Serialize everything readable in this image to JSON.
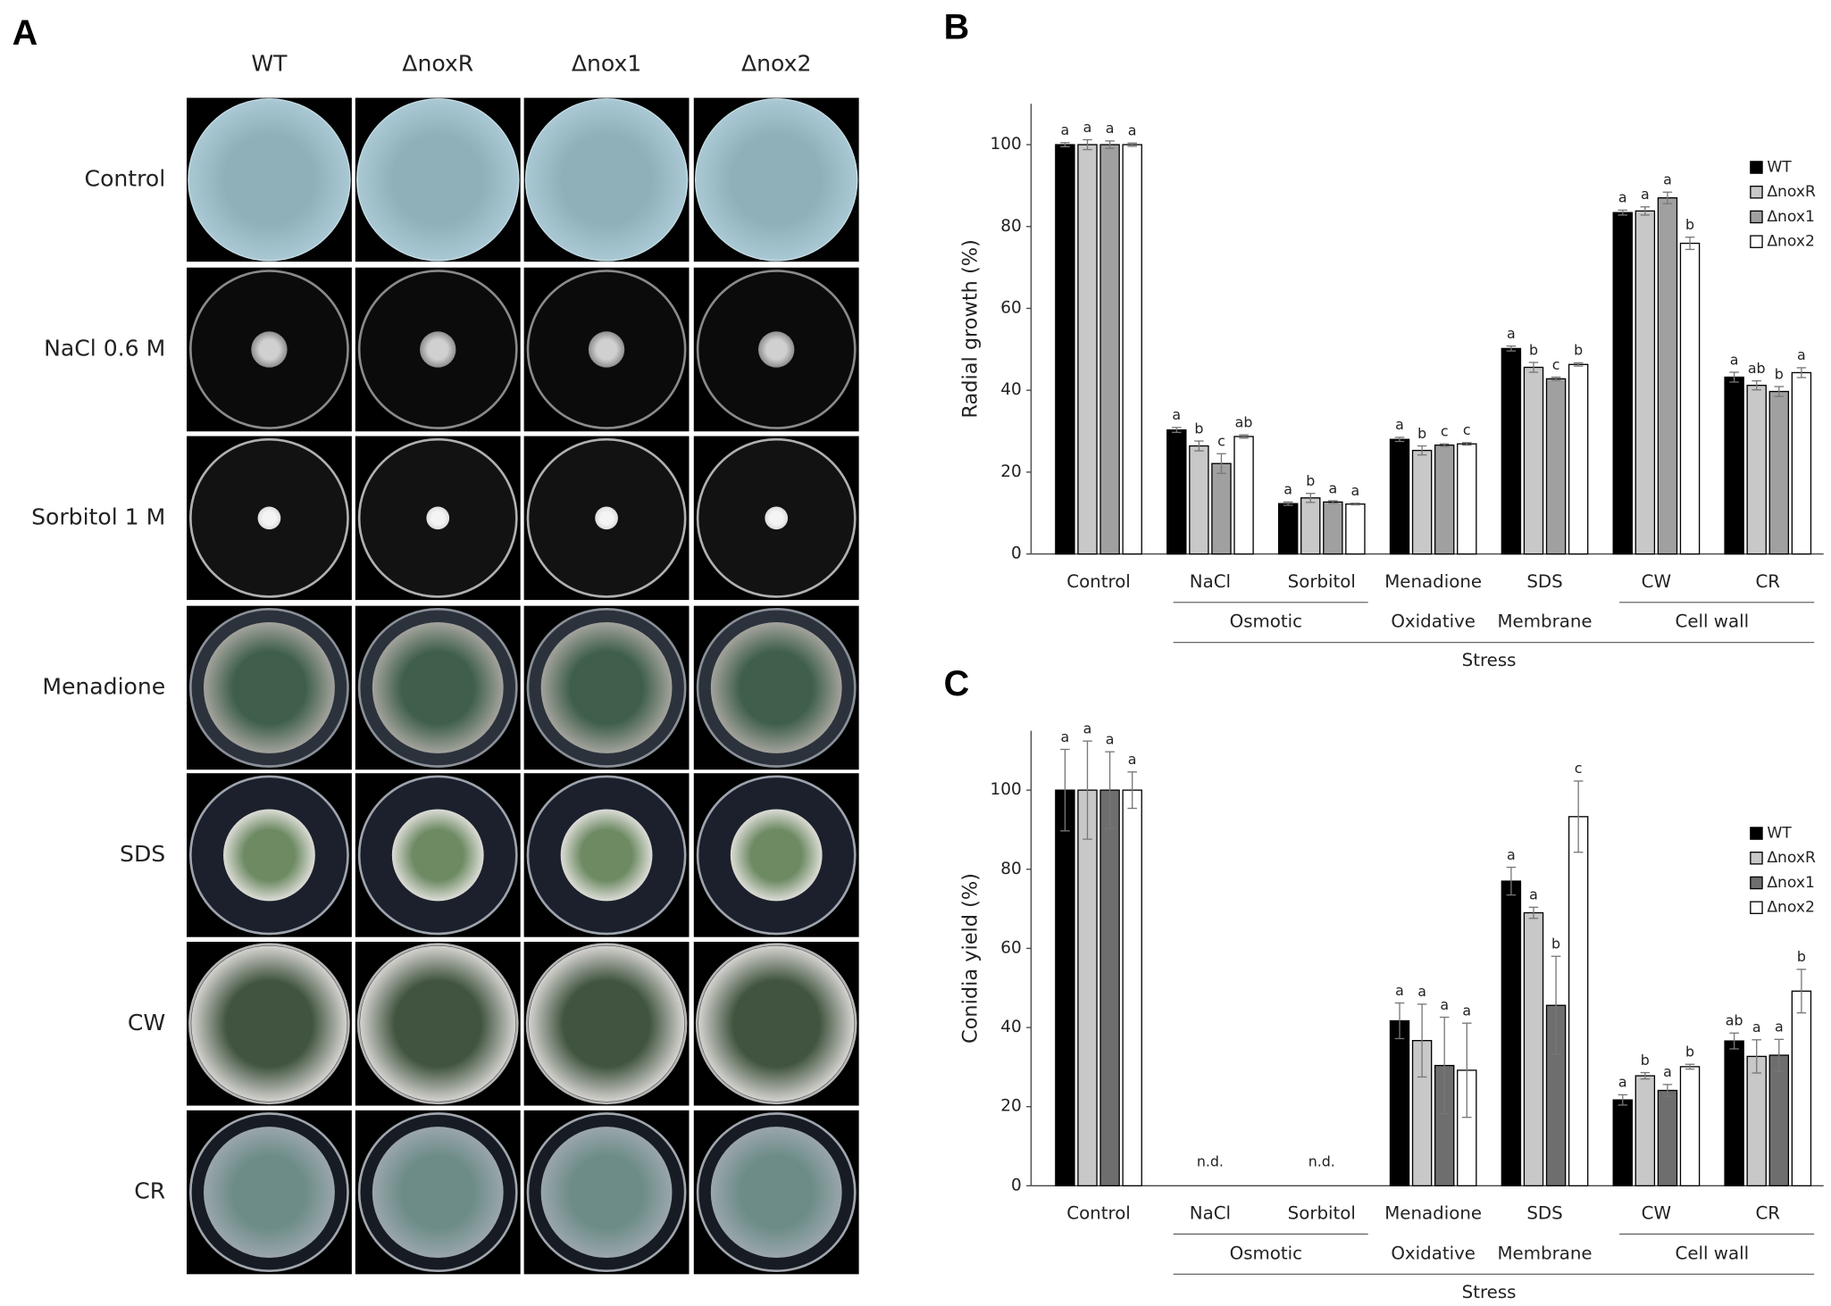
{
  "panel_a": {
    "label": "A",
    "columns": [
      "WT",
      "ΔnoxR",
      "Δnox1",
      "Δnox2"
    ],
    "rows": [
      "Control",
      "NaCl 0.6 M",
      "Sorbitol 1 M",
      "Menadione",
      "SDS",
      "CW",
      "CR"
    ]
  },
  "chart_data": [
    {
      "type": "bar",
      "panel_label": "B",
      "ylabel": "Radial growth (%)",
      "categories": [
        "Control",
        "NaCl",
        "Sorbitol",
        "Menadione",
        "SDS",
        "CW",
        "CR"
      ],
      "group_level_1": [
        null,
        "Osmotic",
        "Osmotic",
        "Oxidative",
        "Membrane",
        "Cell wall",
        "Cell wall"
      ],
      "group_level_2": [
        null,
        "Stress",
        "Stress",
        "Stress",
        "Stress",
        "Stress",
        "Stress"
      ],
      "ylim": [
        0,
        110
      ],
      "yticks": [
        0,
        20,
        40,
        60,
        80,
        100
      ],
      "series": [
        {
          "name": "WT",
          "color": "#000000",
          "values": [
            100,
            30.3,
            12.3,
            28,
            50.2,
            83.4,
            43.2
          ],
          "errors": [
            0.5,
            0.6,
            0.4,
            0.5,
            0.6,
            0.6,
            1.2
          ],
          "letters": [
            "a",
            "a",
            "a",
            "a",
            "a",
            "a",
            "a"
          ]
        },
        {
          "name": "ΔnoxR",
          "color": "#c8c8c8",
          "values": [
            100,
            26.4,
            13.7,
            25.3,
            45.6,
            83.8,
            41.2
          ],
          "errors": [
            1.2,
            1.2,
            1.1,
            1.1,
            1.2,
            1,
            1.1
          ],
          "letters": [
            "a",
            "b",
            "b",
            "b",
            "b",
            "a",
            "ab"
          ]
        },
        {
          "name": "Δnox1",
          "color": "#a0a0a0",
          "values": [
            100,
            22.1,
            12.7,
            26.6,
            42.8,
            87,
            39.7
          ],
          "errors": [
            0.9,
            2.4,
            0.3,
            0.3,
            0.4,
            1.4,
            1.2
          ],
          "letters": [
            "a",
            "c",
            "a",
            "c",
            "c",
            "a",
            "b"
          ]
        },
        {
          "name": "Δnox2",
          "color": "#ffffff",
          "values": [
            100,
            28.7,
            12.2,
            26.9,
            46.3,
            75.9,
            44.3
          ],
          "errors": [
            0.4,
            0.4,
            0.2,
            0.3,
            0.4,
            1.5,
            1.2
          ],
          "letters": [
            "a",
            "ab",
            "a",
            "c",
            "b",
            "b",
            "a"
          ]
        }
      ]
    },
    {
      "type": "bar",
      "panel_label": "C",
      "ylabel": "Conidia yield (%)",
      "categories": [
        "Control",
        "NaCl",
        "Sorbitol",
        "Menadione",
        "SDS",
        "CW",
        "CR"
      ],
      "group_level_1": [
        null,
        "Osmotic",
        "Osmotic",
        "Oxidative",
        "Membrane",
        "Cell wall",
        "Cell wall"
      ],
      "group_level_2": [
        null,
        "Stress",
        "Stress",
        "Stress",
        "Stress",
        "Stress",
        "Stress"
      ],
      "category_notes": [
        null,
        "n.d.",
        "n.d.",
        null,
        null,
        null,
        null
      ],
      "ylim": [
        0,
        115
      ],
      "yticks": [
        0,
        20,
        40,
        60,
        80,
        100
      ],
      "series": [
        {
          "name": "WT",
          "color": "#000000",
          "values": [
            100,
            null,
            null,
            41.7,
            77,
            21.7,
            36.6
          ],
          "errors": [
            10.3,
            null,
            null,
            4.5,
            3.5,
            1.3,
            2
          ],
          "letters": [
            "a",
            null,
            null,
            "a",
            "a",
            "a",
            "ab"
          ]
        },
        {
          "name": "ΔnoxR",
          "color": "#c8c8c8",
          "values": [
            100,
            null,
            null,
            36.7,
            69,
            27.8,
            32.7
          ],
          "errors": [
            12.4,
            null,
            null,
            9.2,
            1.4,
            0.8,
            4.2
          ],
          "letters": [
            "a",
            null,
            null,
            "a",
            "a",
            "b",
            "a"
          ]
        },
        {
          "name": "Δnox1",
          "color": "#6e6e6e",
          "values": [
            100,
            null,
            null,
            30.4,
            45.6,
            24.1,
            33
          ],
          "errors": [
            9.7,
            null,
            null,
            12.2,
            12.4,
            1.5,
            4
          ],
          "letters": [
            "a",
            null,
            null,
            "a",
            "b",
            "a",
            "a"
          ]
        },
        {
          "name": "Δnox2",
          "color": "#ffffff",
          "values": [
            100,
            null,
            null,
            29.2,
            93.3,
            30.1,
            49.2
          ],
          "errors": [
            4.6,
            null,
            null,
            11.9,
            9,
            0.6,
            5.5
          ],
          "letters": [
            "a",
            null,
            null,
            "a",
            "c",
            "b",
            "b"
          ]
        }
      ]
    }
  ]
}
